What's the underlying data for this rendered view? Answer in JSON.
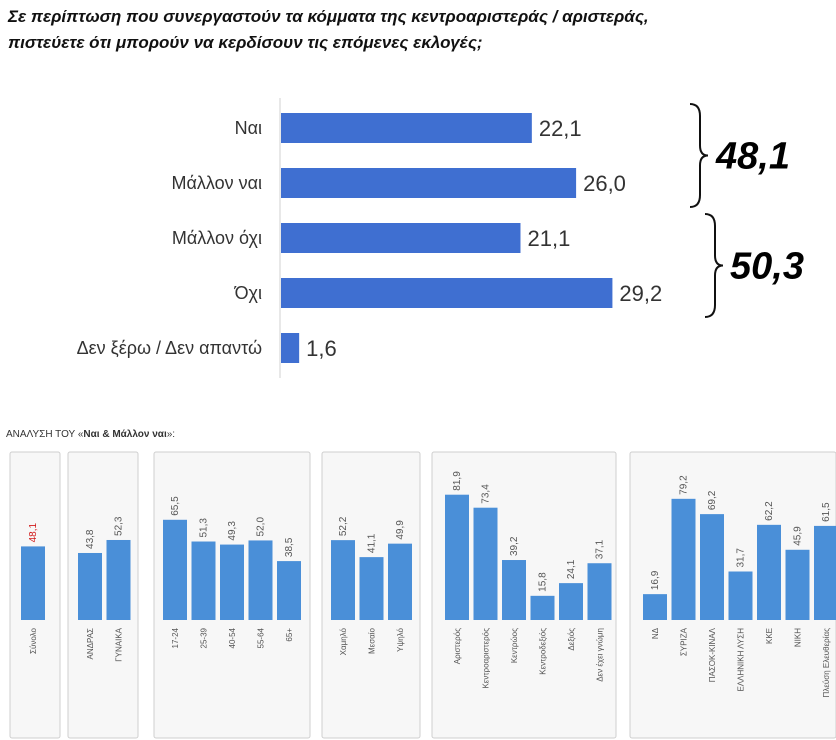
{
  "title": {
    "line1": "Σε περίπτωση που συνεργαστούν τα κόμματα της κεντροαριστεράς / αριστεράς,",
    "line2": "πιστεύετε ότι μπορούν να κερδίσουν τις επόμενες εκλογές;"
  },
  "chart_data": [
    {
      "type": "bar",
      "orientation": "horizontal",
      "categories": [
        "Ναι",
        "Μάλλον ναι",
        "Μάλλον όχι",
        "Όχι",
        "Δεν ξέρω / Δεν απαντώ"
      ],
      "values": [
        22.1,
        26.0,
        21.1,
        29.2,
        1.6
      ],
      "value_labels": [
        "22,1",
        "26,0",
        "21,1",
        "29,2",
        "1,6"
      ],
      "color": "#3f6fd1",
      "groups": [
        {
          "label": "48,1",
          "from": 0,
          "to": 1
        },
        {
          "label": "50,3",
          "from": 2,
          "to": 3
        }
      ]
    },
    {
      "type": "bar",
      "title_prefix": "ΑΝΑΛΥΣΗ ΤΟΥ «",
      "title_bold": "Ναι & Μάλλον ναι",
      "title_suffix": "»:",
      "color": "#4a8fd8",
      "highlight_color": "#d11a1a",
      "groups": [
        {
          "categories": [
            "Σύνολο"
          ],
          "values": [
            48.1
          ],
          "labels": [
            "48,1"
          ],
          "highlight": [
            0
          ]
        },
        {
          "categories": [
            "ΑΝΔΡΑΣ",
            "ΓΥΝΑΙΚΑ"
          ],
          "values": [
            43.8,
            52.3
          ],
          "labels": [
            "43,8",
            "52,3"
          ]
        },
        {
          "categories": [
            "17-24",
            "25-39",
            "40-54",
            "55-64",
            "65+"
          ],
          "values": [
            65.5,
            51.3,
            49.3,
            52.0,
            38.5
          ],
          "labels": [
            "65,5",
            "51,3",
            "49,3",
            "52,0",
            "38,5"
          ]
        },
        {
          "categories": [
            "Χαμηλό",
            "Μεσαίο",
            "Υψηλό"
          ],
          "values": [
            52.2,
            41.1,
            49.9
          ],
          "labels": [
            "52,2",
            "41,1",
            "49,9"
          ]
        },
        {
          "categories": [
            "Αριστερός",
            "Κεντροαριστερός",
            "Κεντρώος",
            "Κεντροδεξιός",
            "Δεξιός",
            "Δεν έχει γνώμη"
          ],
          "values": [
            81.9,
            73.4,
            39.2,
            15.8,
            24.1,
            37.1
          ],
          "labels": [
            "81,9",
            "73,4",
            "39,2",
            "15,8",
            "24,1",
            "37,1"
          ]
        },
        {
          "categories": [
            "ΝΔ",
            "ΣΥΡΙΖΑ",
            "ΠΑΣΟΚ-ΚΙΝΑΛ",
            "ΕΛΛΗΝΙΚΗ ΛΥΣΗ",
            "ΚΚΕ",
            "ΝΙΚΗ",
            "Πλεύση Ελευθερίας"
          ],
          "values": [
            16.9,
            79.2,
            69.2,
            31.7,
            62.2,
            45.9,
            61.5
          ],
          "labels": [
            "16,9",
            "79,2",
            "69,2",
            "31,7",
            "62,2",
            "45,9",
            "61,5"
          ]
        }
      ]
    }
  ]
}
